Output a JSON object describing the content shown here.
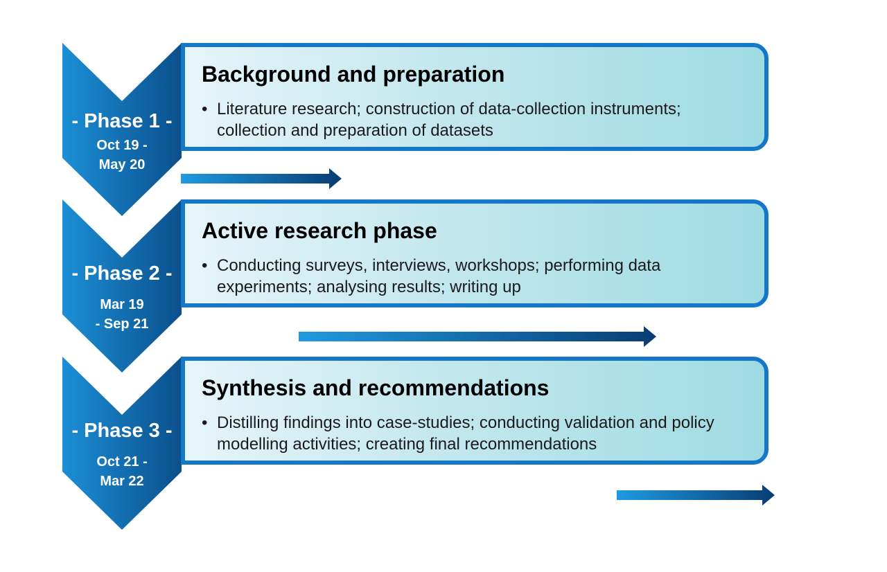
{
  "phases": [
    {
      "label": "- Phase 1 -",
      "dates_line1": "Oct 19 -",
      "dates_line2": "May 20",
      "title": "Background and preparation",
      "bullet": "Literature research; construction of data-collection instruments; collection and preparation of datasets"
    },
    {
      "label": "- Phase 2 -",
      "dates_line1": "Mar 19",
      "dates_line2": "- Sep 21",
      "title": "Active research phase",
      "bullet": "Conducting surveys, interviews, workshops; performing data experiments; analysing results; writing up"
    },
    {
      "label": "- Phase 3 -",
      "dates_line1": "Oct 21 -",
      "dates_line2": "Mar 22",
      "title": "Synthesis and recommendations",
      "bullet": "Distilling findings into case-studies; conducting validation and policy modelling activities; creating final recommendations"
    }
  ],
  "bullet_symbol": "•",
  "colors": {
    "chevron_light": "#1b8fd6",
    "chevron_dark": "#0b4f8c",
    "box_border": "#1577c8",
    "box_fill_light": "#e6f5f9",
    "box_fill_dark": "#9fdbe3",
    "arrow_light": "#1f9ae0",
    "arrow_dark": "#083d73"
  }
}
